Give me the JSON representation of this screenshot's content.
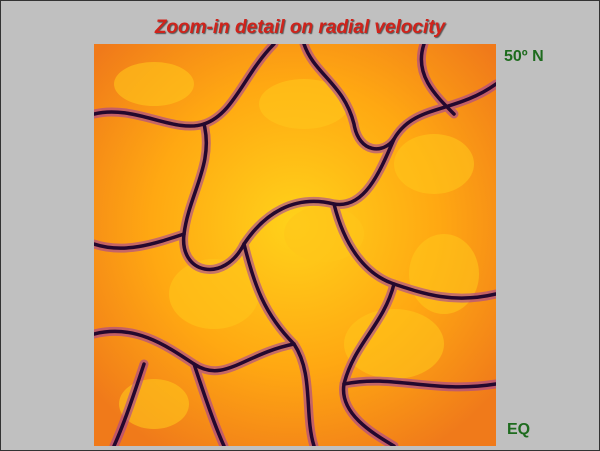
{
  "header": {
    "title": "Zoom-in detail on radial velocity"
  },
  "labels": {
    "top": "50º N",
    "bottom": "EQ"
  }
}
